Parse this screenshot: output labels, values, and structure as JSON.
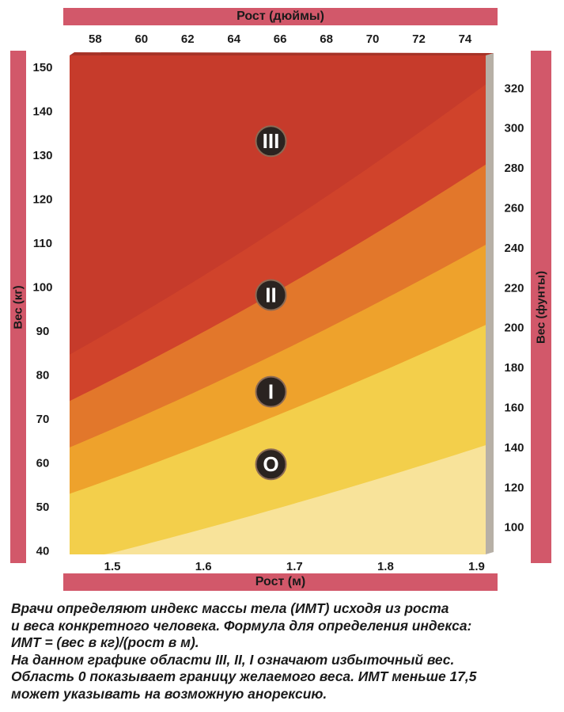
{
  "chart_data": {
    "type": "area",
    "title": "",
    "x_top": {
      "label": "Рост (дюймы)",
      "ticks": [
        58,
        60,
        62,
        64,
        66,
        68,
        70,
        72,
        74
      ],
      "range": [
        57.2,
        75.2
      ]
    },
    "x_bottom": {
      "label": "Рост (м)",
      "ticks": [
        "1.5",
        "1.6",
        "1.7",
        "1.8",
        "1.9"
      ],
      "range": [
        1.453,
        1.91
      ]
    },
    "y_left": {
      "label": "Вес (кг)",
      "ticks": [
        40,
        50,
        60,
        70,
        80,
        90,
        100,
        110,
        120,
        130,
        140,
        150
      ],
      "range": [
        39,
        152.5
      ]
    },
    "y_right": {
      "label": "Вес (фунты)",
      "ticks": [
        100,
        120,
        140,
        160,
        180,
        200,
        220,
        240,
        260,
        280,
        300,
        320
      ],
      "range": [
        86,
        336
      ]
    },
    "zone_boundaries_bmi": [
      17.5,
      25,
      30,
      35,
      40
    ],
    "zones": [
      {
        "label": "O",
        "bmi_range": [
          17.5,
          25
        ],
        "color": "#f3cf4b"
      },
      {
        "label": "I",
        "bmi_range": [
          25,
          30
        ],
        "color": "#eea22c"
      },
      {
        "label": "II",
        "bmi_range": [
          30,
          35
        ],
        "color": "#e2772b"
      },
      {
        "label": "III",
        "bmi_range": [
          35,
          40
        ],
        "color": "#d0432b"
      }
    ],
    "colors": {
      "below_17_5": "#f8e39a",
      "above_40": "#c63b2b",
      "band": "#d2586a"
    }
  },
  "caption": {
    "lines": [
      "Врачи определяют индекс массы тела (ИМТ) исходя из роста",
      "и веса конкретного человека. Формула для определения индекса:",
      "ИМТ = (вес в кг)/(рост в м).",
      "На данном графике области III, II, I означают избыточный вес.",
      "Область 0 показывает границу желаемого веса. ИМТ меньше 17,5",
      "может указывать на возможную анорексию."
    ]
  }
}
